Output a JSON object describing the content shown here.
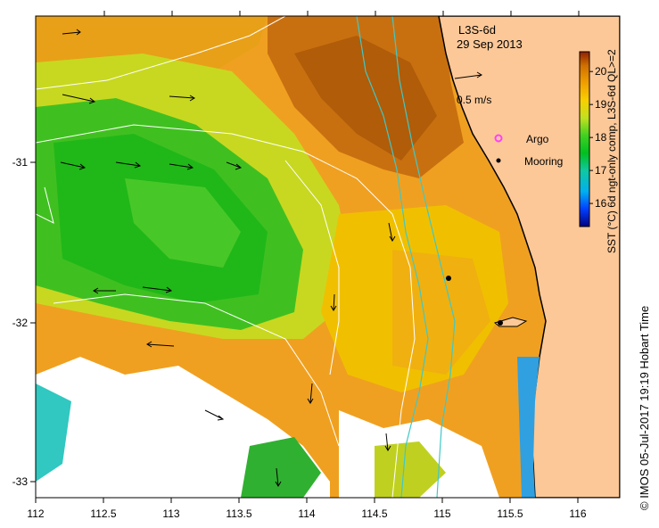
{
  "map": {
    "product": "L3S-6d",
    "date": "29 Sep 2013",
    "scale_label": "0.5 m/s",
    "legend": {
      "argo_label": "Argo",
      "mooring_label": "Mooring"
    },
    "colorbar": {
      "label": "SST (°C) 6d ngt-only comp, L3S-6d QL>=2",
      "ticks": [
        "16",
        "17",
        "18",
        "19",
        "20"
      ],
      "min": 15.3,
      "max": 20.6
    },
    "x_ticks": [
      "112",
      "112.5",
      "113",
      "113.5",
      "114",
      "114.5",
      "115",
      "115.5",
      "116"
    ],
    "y_ticks": [
      "-31",
      "-32",
      "-33"
    ],
    "credit": "© IMOS 05-Jul-2017 19:19 Hobart Time",
    "colors": {
      "land": "#fcc898",
      "coast": "#000000",
      "isobath_cyan": "#40c8c8",
      "contour": "#ffffff",
      "argo": "#ff40ff",
      "mooring": "#000000"
    },
    "moorings": [
      {
        "lon": 115.05,
        "lat": -31.72
      },
      {
        "lon": 115.43,
        "lat": -32.0
      }
    ]
  }
}
